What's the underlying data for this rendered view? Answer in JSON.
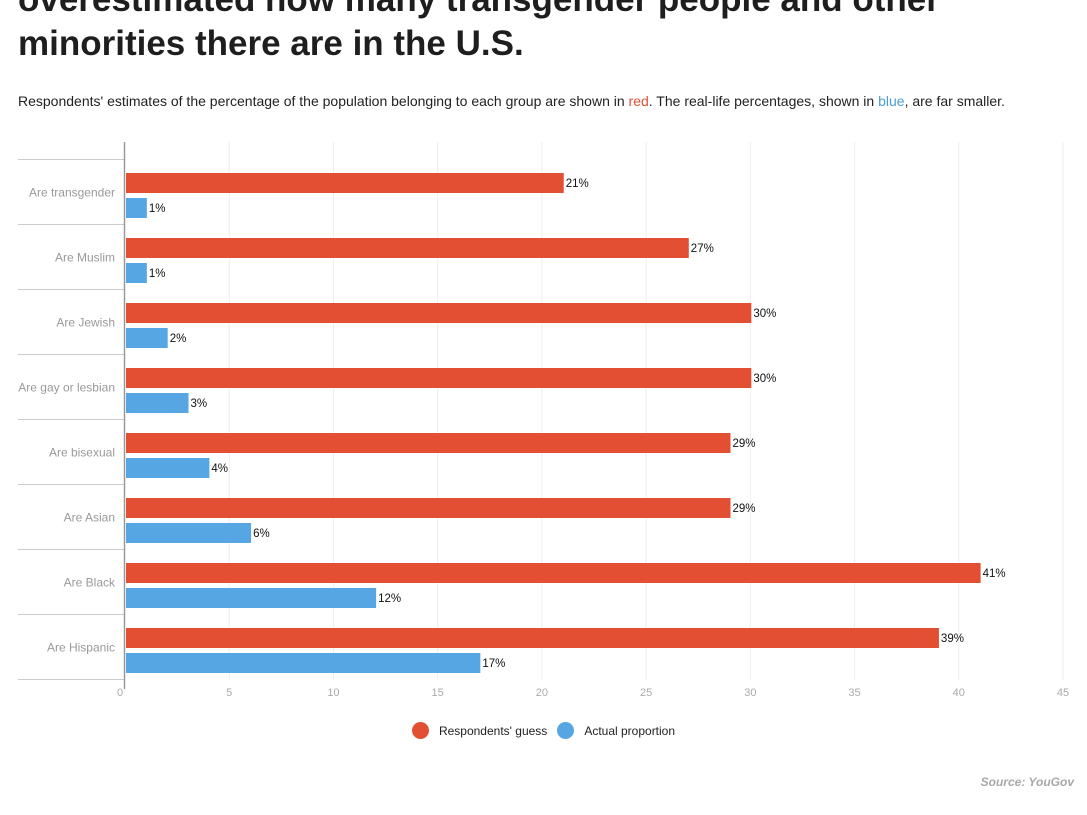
{
  "headline": "overestimated how many transgender people and other minorities there are in the U.S.",
  "subtitle": {
    "part1": "Respondents' estimates of the percentage of the population belonging to each group are shown in ",
    "red_word": "red",
    "part2": ". The real-life percentages, shown in ",
    "blue_word": "blue",
    "part3": ", are far smaller."
  },
  "colors": {
    "guess": "#e34f32",
    "actual": "#56a6e3",
    "category_label": "#999999",
    "tick_label": "#aaaaaa",
    "grid": "#eeeeee"
  },
  "chart_data": {
    "type": "bar",
    "orientation": "horizontal",
    "categories": [
      "Are transgender",
      "Are Muslim",
      "Are Jewish",
      "Are gay or lesbian",
      "Are bisexual",
      "Are Asian",
      "Are Black",
      "Are Hispanic"
    ],
    "series": [
      {
        "name": "Respondents' guess",
        "color": "#e34f32",
        "values": [
          21,
          27,
          30,
          30,
          29,
          29,
          41,
          39
        ],
        "labels": [
          "21%",
          "27%",
          "30%",
          "30%",
          "29%",
          "29%",
          "41%",
          "39%"
        ]
      },
      {
        "name": "Actual proportion",
        "color": "#56a6e3",
        "values": [
          1,
          1,
          2,
          3,
          4,
          6,
          12,
          17
        ],
        "labels": [
          "1%",
          "1%",
          "2%",
          "3%",
          "4%",
          "6%",
          "12%",
          "17%"
        ]
      }
    ],
    "xlim": [
      0,
      45
    ],
    "xticks": [
      0,
      5,
      10,
      15,
      20,
      25,
      30,
      35,
      40,
      45
    ],
    "grid": true,
    "legend": "bottom-center"
  },
  "source": "Source: YouGov"
}
